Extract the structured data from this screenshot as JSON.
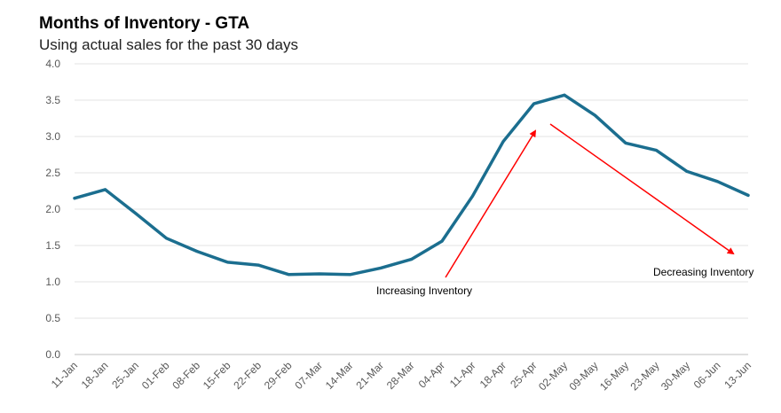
{
  "chart_data": {
    "type": "line",
    "title": "Months of Inventory - GTA",
    "subtitle": "Using actual sales for the past 30 days",
    "categories": [
      "11-Jan",
      "18-Jan",
      "25-Jan",
      "01-Feb",
      "08-Feb",
      "15-Feb",
      "22-Feb",
      "29-Feb",
      "07-Mar",
      "14-Mar",
      "21-Mar",
      "28-Mar",
      "04-Apr",
      "11-Apr",
      "18-Apr",
      "25-Apr",
      "02-May",
      "09-May",
      "16-May",
      "23-May",
      "30-May",
      "06-Jun",
      "13-Jun"
    ],
    "series": [
      {
        "values": [
          2.15,
          2.27,
          1.94,
          1.6,
          1.42,
          1.27,
          1.23,
          1.1,
          1.11,
          1.1,
          1.19,
          1.31,
          1.56,
          2.18,
          2.93,
          3.45,
          3.57,
          3.29,
          2.91,
          2.81,
          2.52,
          2.38,
          2.19
        ],
        "color": "#1b6e8f"
      }
    ],
    "ylim": [
      0,
      4.0
    ],
    "yticks": [
      "0.0",
      "0.5",
      "1.0",
      "1.5",
      "2.0",
      "2.5",
      "3.0",
      "3.5",
      "4.0"
    ],
    "grid": true,
    "annotations": [
      {
        "text": "Increasing Inventory",
        "arrow_color": "#ff0000"
      },
      {
        "text": "Decreasing Inventory",
        "arrow_color": "#ff0000"
      }
    ]
  }
}
